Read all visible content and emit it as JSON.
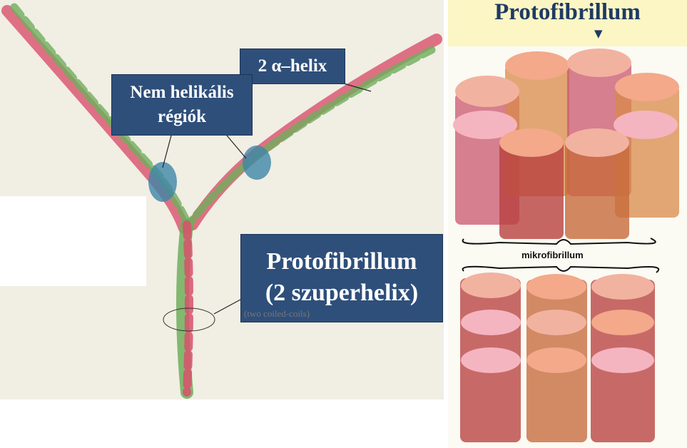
{
  "diagram": {
    "title": "Protofibrillum",
    "labels": {
      "alpha_helix": "2 α–helix",
      "non_helical_line1": "Nem helikális",
      "non_helical_line2": "régiók",
      "protofibril_line1": "Protofibrillum",
      "protofibril_line2": "(2 szuperhelix)",
      "caption": "(two coiled-coils)",
      "microfibril": "mikrofibrillum"
    },
    "icons": [
      "down-arrow-icon"
    ],
    "colors": {
      "label_bg": "#2e4f7a",
      "title_text": "#1f3a63",
      "title_band": "#fbf6c4",
      "helix_red": "#d9506b",
      "helix_green": "#6fae5c",
      "node_blue": "#3f86a8"
    }
  }
}
